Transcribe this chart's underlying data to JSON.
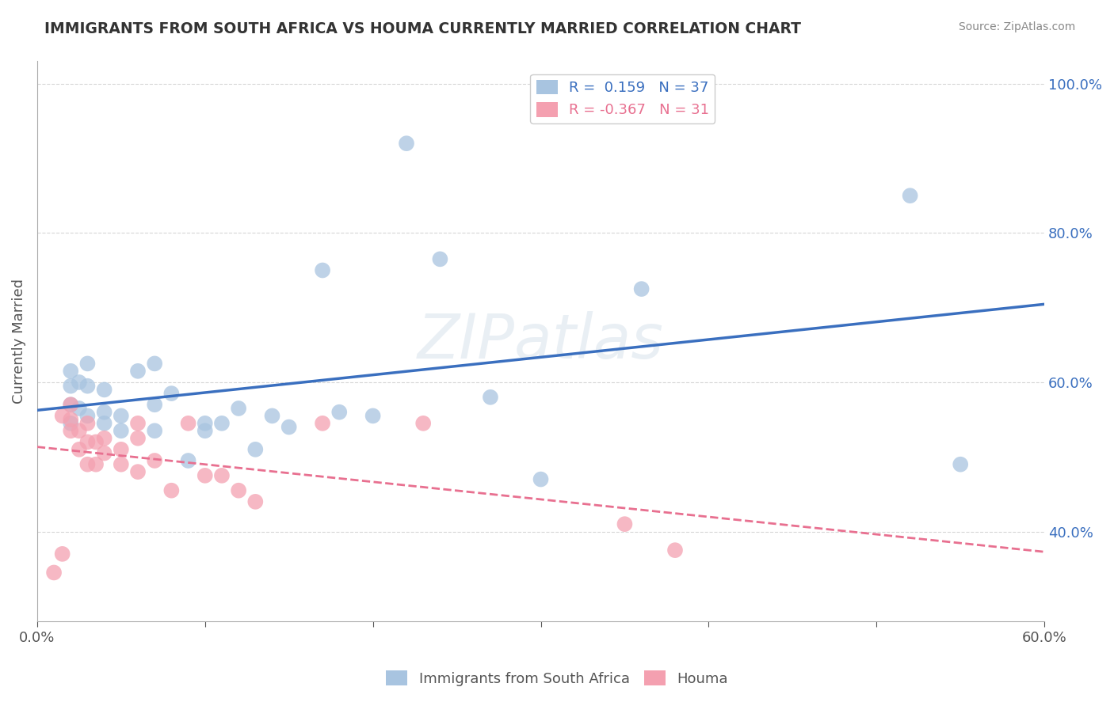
{
  "title": "IMMIGRANTS FROM SOUTH AFRICA VS HOUMA CURRENTLY MARRIED CORRELATION CHART",
  "source_text": "Source: ZipAtlas.com",
  "ylabel": "Currently Married",
  "xlim": [
    0.0,
    0.6
  ],
  "ylim": [
    0.28,
    1.03
  ],
  "xticks": [
    0.0,
    0.1,
    0.2,
    0.3,
    0.4,
    0.5,
    0.6
  ],
  "xticklabels": [
    "0.0%",
    "",
    "",
    "",
    "",
    "",
    "60.0%"
  ],
  "yticks": [
    0.4,
    0.6,
    0.8,
    1.0
  ],
  "yticklabels": [
    "40.0%",
    "60.0%",
    "80.0%",
    "100.0%"
  ],
  "watermark": "ZIPatlas",
  "series1_color": "#a8c4e0",
  "series2_color": "#f4a0b0",
  "line1_color": "#3a6fbf",
  "line2_color": "#e87090",
  "background_color": "#ffffff",
  "R1": 0.159,
  "N1": 37,
  "R2": -0.367,
  "N2": 31,
  "blue_dots": [
    [
      0.02,
      0.595
    ],
    [
      0.02,
      0.615
    ],
    [
      0.02,
      0.57
    ],
    [
      0.02,
      0.545
    ],
    [
      0.025,
      0.6
    ],
    [
      0.025,
      0.565
    ],
    [
      0.03,
      0.625
    ],
    [
      0.03,
      0.555
    ],
    [
      0.03,
      0.595
    ],
    [
      0.04,
      0.545
    ],
    [
      0.04,
      0.56
    ],
    [
      0.04,
      0.59
    ],
    [
      0.05,
      0.535
    ],
    [
      0.05,
      0.555
    ],
    [
      0.06,
      0.615
    ],
    [
      0.07,
      0.535
    ],
    [
      0.07,
      0.625
    ],
    [
      0.07,
      0.57
    ],
    [
      0.08,
      0.585
    ],
    [
      0.09,
      0.495
    ],
    [
      0.1,
      0.535
    ],
    [
      0.1,
      0.545
    ],
    [
      0.11,
      0.545
    ],
    [
      0.12,
      0.565
    ],
    [
      0.13,
      0.51
    ],
    [
      0.14,
      0.555
    ],
    [
      0.15,
      0.54
    ],
    [
      0.17,
      0.75
    ],
    [
      0.18,
      0.56
    ],
    [
      0.2,
      0.555
    ],
    [
      0.22,
      0.92
    ],
    [
      0.24,
      0.765
    ],
    [
      0.27,
      0.58
    ],
    [
      0.3,
      0.47
    ],
    [
      0.36,
      0.725
    ],
    [
      0.52,
      0.85
    ],
    [
      0.55,
      0.49
    ]
  ],
  "pink_dots": [
    [
      0.015,
      0.37
    ],
    [
      0.015,
      0.555
    ],
    [
      0.02,
      0.535
    ],
    [
      0.02,
      0.57
    ],
    [
      0.02,
      0.55
    ],
    [
      0.025,
      0.51
    ],
    [
      0.025,
      0.535
    ],
    [
      0.03,
      0.49
    ],
    [
      0.03,
      0.545
    ],
    [
      0.03,
      0.52
    ],
    [
      0.035,
      0.49
    ],
    [
      0.035,
      0.52
    ],
    [
      0.04,
      0.505
    ],
    [
      0.04,
      0.525
    ],
    [
      0.05,
      0.49
    ],
    [
      0.05,
      0.51
    ],
    [
      0.06,
      0.48
    ],
    [
      0.06,
      0.545
    ],
    [
      0.06,
      0.525
    ],
    [
      0.07,
      0.495
    ],
    [
      0.08,
      0.455
    ],
    [
      0.09,
      0.545
    ],
    [
      0.1,
      0.475
    ],
    [
      0.11,
      0.475
    ],
    [
      0.12,
      0.455
    ],
    [
      0.13,
      0.44
    ],
    [
      0.17,
      0.545
    ],
    [
      0.23,
      0.545
    ],
    [
      0.35,
      0.41
    ],
    [
      0.38,
      0.375
    ],
    [
      0.01,
      0.345
    ]
  ]
}
